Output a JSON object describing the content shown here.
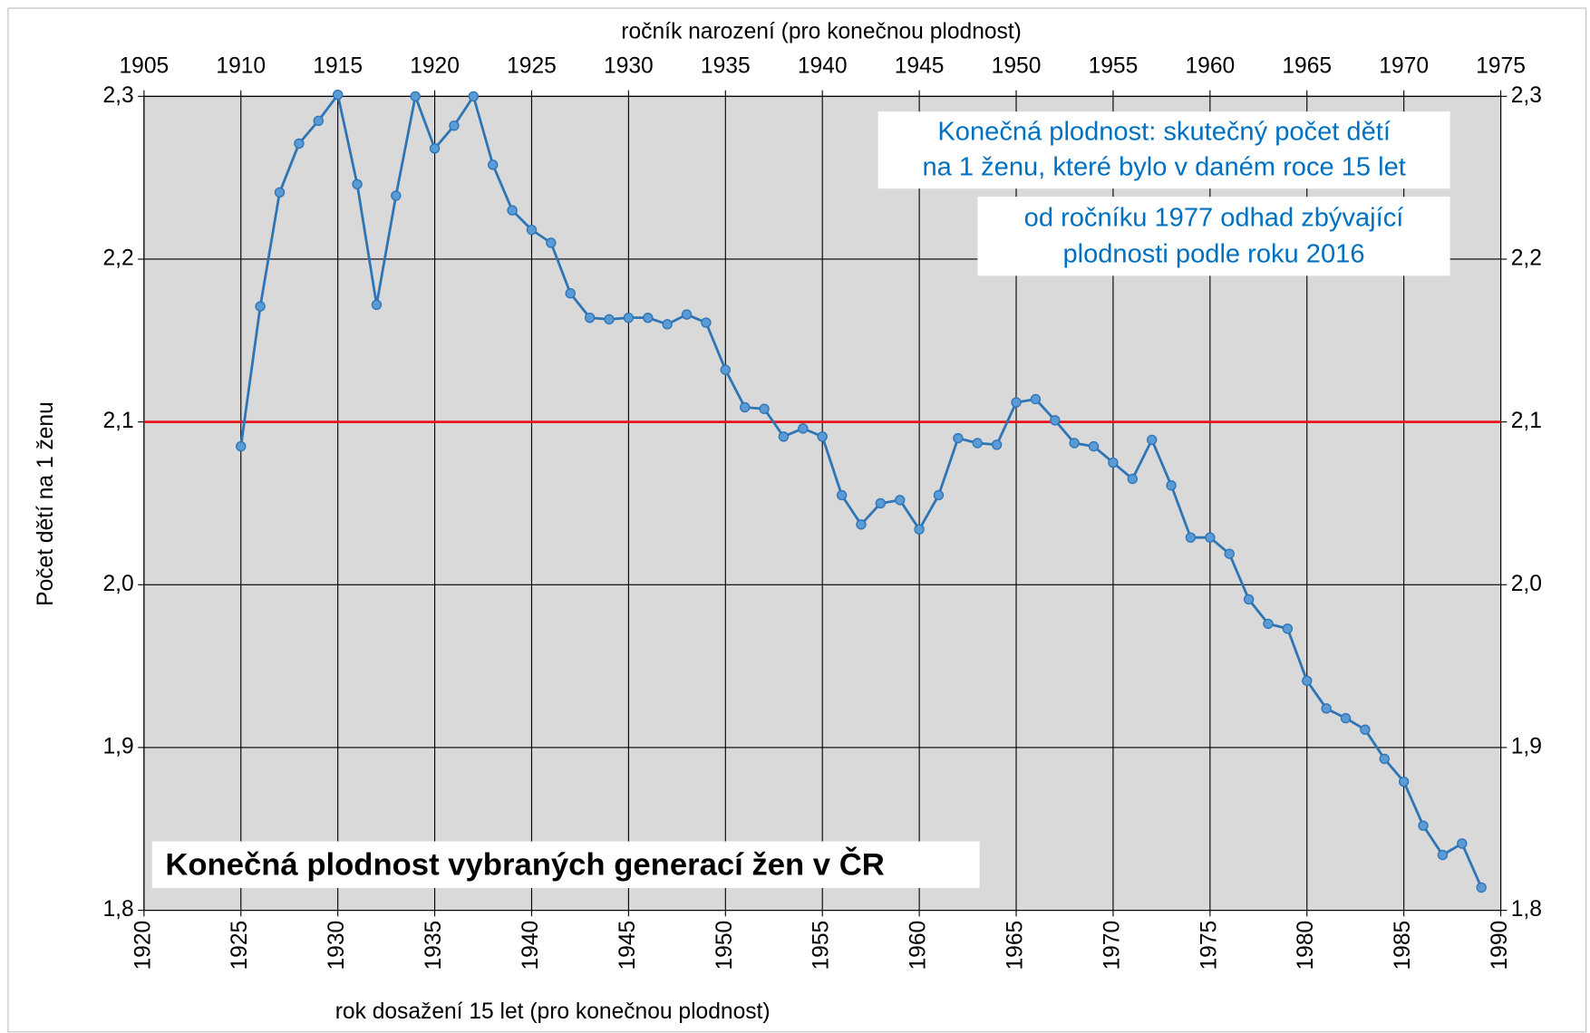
{
  "chart_data": {
    "type": "line",
    "title": "Konečná plodnost vybraných generací žen v ČR",
    "xlabel": "rok dosažení 15 let (pro konečnou plodnost)",
    "x2label": "ročník narození (pro konečnou plodnost)",
    "ylabel": "Počet dětí na 1 ženu",
    "annotations": [
      [
        "Konečná plodnost: skutečný počet dětí",
        "na 1 ženu, které bylo v daném roce 15 let"
      ],
      [
        "od ročníku 1977 odhad zbývající",
        "plodnosti podle roku 2016"
      ]
    ],
    "x": [
      1925,
      1926,
      1927,
      1928,
      1929,
      1930,
      1931,
      1932,
      1933,
      1934,
      1935,
      1936,
      1937,
      1938,
      1939,
      1940,
      1941,
      1942,
      1943,
      1944,
      1945,
      1946,
      1947,
      1948,
      1949,
      1950,
      1951,
      1952,
      1953,
      1954,
      1955,
      1956,
      1957,
      1958,
      1959,
      1960,
      1961,
      1962,
      1963,
      1964,
      1965,
      1966,
      1967,
      1968,
      1969,
      1970,
      1971,
      1972,
      1973,
      1974,
      1975,
      1976,
      1977,
      1978,
      1979,
      1980,
      1981,
      1982,
      1983,
      1984,
      1985,
      1986,
      1987,
      1988,
      1989
    ],
    "series": [
      {
        "color": "#2e75b6",
        "marker_color": "#5b9bd5",
        "values": [
          2.085,
          2.171,
          2.241,
          2.271,
          2.285,
          2.301,
          2.246,
          2.172,
          2.239,
          2.3,
          2.268,
          2.282,
          2.3,
          2.258,
          2.23,
          2.218,
          2.21,
          2.179,
          2.164,
          2.163,
          2.164,
          2.164,
          2.16,
          2.166,
          2.161,
          2.132,
          2.109,
          2.108,
          2.091,
          2.096,
          2.091,
          2.055,
          2.037,
          2.05,
          2.052,
          2.034,
          2.055,
          2.09,
          2.087,
          2.086,
          2.112,
          2.114,
          2.101,
          2.087,
          2.085,
          2.075,
          2.065,
          2.089,
          2.061,
          2.029,
          2.029,
          2.019,
          1.991,
          1.976,
          1.973,
          1.941,
          1.924,
          1.918,
          1.911,
          1.893,
          1.879,
          1.852,
          1.834,
          1.841,
          1.814
        ]
      }
    ],
    "reference_line": {
      "value": 2.1,
      "color": "#e8141c"
    },
    "xlim": [
      1920,
      1990
    ],
    "xticks": [
      1920,
      1925,
      1930,
      1935,
      1940,
      1945,
      1950,
      1955,
      1960,
      1965,
      1970,
      1975,
      1980,
      1985,
      1990
    ],
    "x2lim": [
      1905,
      1975
    ],
    "x2ticks": [
      1905,
      1910,
      1915,
      1920,
      1925,
      1930,
      1935,
      1940,
      1945,
      1950,
      1955,
      1960,
      1965,
      1970,
      1975
    ],
    "ylim": [
      1.8,
      2.3
    ],
    "yticks": [
      {
        "value": 1.8,
        "label": "1,8"
      },
      {
        "value": 1.9,
        "label": "1,9"
      },
      {
        "value": 2.0,
        "label": "2,0"
      },
      {
        "value": 2.1,
        "label": "2,1"
      },
      {
        "value": 2.2,
        "label": "2,2"
      },
      {
        "value": 2.3,
        "label": "2,3"
      }
    ],
    "grid": true,
    "plot_background": "#d9d9d9"
  }
}
